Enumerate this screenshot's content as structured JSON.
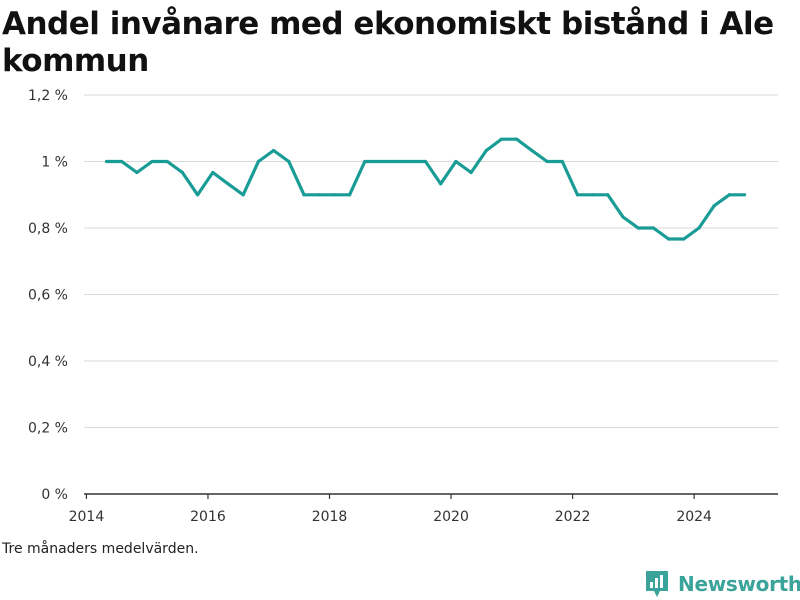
{
  "title": "Andel invånare med ekonomiskt bistånd i Ale kommun",
  "note": "Tre månaders medelvärden.",
  "brand": {
    "label": "Newsworthy",
    "icon": "newsworthy-logo-icon",
    "color": "#3aa39a"
  },
  "colors": {
    "line": "#1a9c96",
    "grid": "#d9d9d9",
    "axis": "#333333"
  },
  "chart_data": {
    "type": "line",
    "title": "Andel invånare med ekonomiskt bistånd i Ale kommun",
    "xlabel": "",
    "ylabel": "",
    "grid": true,
    "legend": "none",
    "xlim": [
      2013.96,
      2025.38
    ],
    "ylim": [
      0,
      1.2
    ],
    "xticks": [
      2014,
      2016,
      2018,
      2020,
      2022,
      2024
    ],
    "xtick_labels": [
      "2014",
      "2016",
      "2018",
      "2020",
      "2022",
      "2024"
    ],
    "yticks": [
      0,
      0.2,
      0.4,
      0.6,
      0.8,
      1.0,
      1.2
    ],
    "ytick_labels": [
      "0 %",
      "0,2 %",
      "0,4 %",
      "0,6 %",
      "0,8 %",
      "1 %",
      "1,2 %"
    ],
    "series": [
      {
        "x": [
          2014.33,
          2014.58,
          2014.83,
          2015.08,
          2015.33,
          2015.58,
          2015.83,
          2016.08,
          2016.33,
          2016.58,
          2016.83,
          2017.08,
          2017.33,
          2017.58,
          2017.83,
          2018.08,
          2018.33,
          2018.58,
          2018.83,
          2019.08,
          2019.33,
          2019.58,
          2019.83,
          2020.08,
          2020.33,
          2020.58,
          2020.83,
          2021.08,
          2021.33,
          2021.58,
          2021.83,
          2022.08,
          2022.33,
          2022.58,
          2022.83,
          2023.08,
          2023.33,
          2023.58,
          2023.83,
          2024.08,
          2024.33,
          2024.58,
          2024.83
        ],
        "values": [
          1.0,
          1.0,
          0.967,
          1.0,
          1.0,
          0.967,
          0.9,
          0.967,
          0.933,
          0.9,
          1.0,
          1.033,
          1.0,
          0.9,
          0.9,
          0.9,
          0.9,
          1.0,
          1.0,
          1.0,
          1.0,
          1.0,
          0.933,
          1.0,
          0.967,
          1.033,
          1.067,
          1.067,
          1.033,
          1.0,
          1.0,
          0.9,
          0.9,
          0.9,
          0.833,
          0.8,
          0.8,
          0.767,
          0.767,
          0.8,
          0.867,
          0.9,
          0.9
        ]
      }
    ]
  }
}
